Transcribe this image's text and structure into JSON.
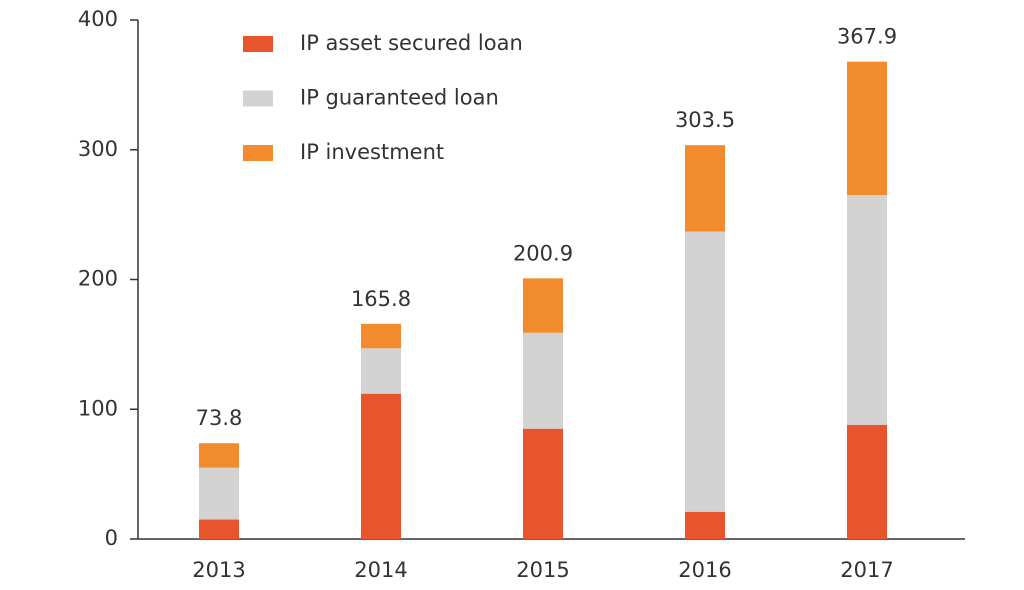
{
  "chart_data": {
    "type": "stacked-bar",
    "categories": [
      "2013",
      "2014",
      "2015",
      "2016",
      "2017"
    ],
    "series": [
      {
        "name": "IP asset secured loan",
        "color": "#e8542b",
        "values": [
          15,
          112,
          85,
          21,
          88
        ]
      },
      {
        "name": "IP guaranteed loan",
        "color": "#d3d3d3",
        "values": [
          40,
          35,
          74,
          216,
          177
        ]
      },
      {
        "name": "IP investment",
        "color": "#f28a2e",
        "values": [
          18.8,
          18.8,
          41.9,
          66.5,
          102.9
        ]
      }
    ],
    "totals": [
      73.8,
      165.8,
      200.9,
      303.5,
      367.9
    ],
    "ylim": [
      0,
      400
    ],
    "yticks": [
      0,
      100,
      200,
      300,
      400
    ],
    "grid": false,
    "legend": "top-left"
  }
}
